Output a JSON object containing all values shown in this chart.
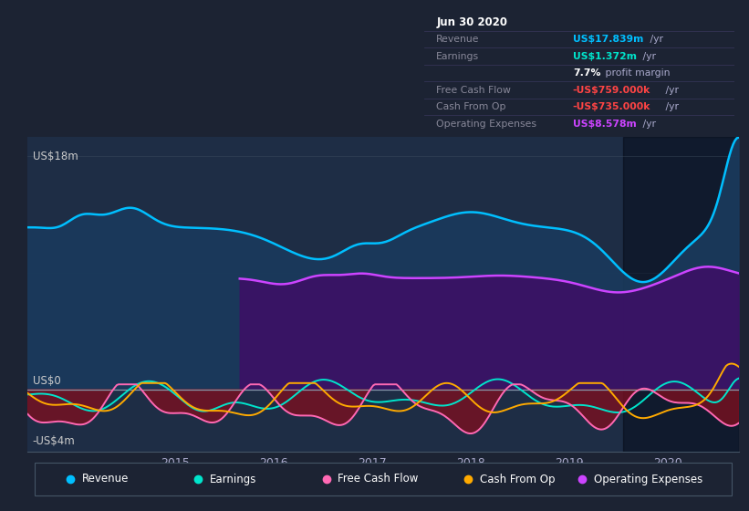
{
  "bg_color": "#1c2333",
  "plot_bg": "#1e2d45",
  "revenue_color": "#00bfff",
  "revenue_fill": "#1a3a5c",
  "earnings_color": "#00e5cc",
  "fcf_color": "#ff69b4",
  "fcf_fill": "#7a1020",
  "cashop_color": "#ffaa00",
  "opex_color": "#cc44ff",
  "opex_fill": "#3a1265",
  "dark_region_start": 2019.55,
  "opex_start": 2015.65,
  "xlim": [
    2013.5,
    2020.72
  ],
  "ylim": [
    -4.8,
    19.5
  ],
  "xtick_values": [
    2015,
    2016,
    2017,
    2018,
    2019,
    2020
  ],
  "xtick_labels": [
    "2015",
    "2016",
    "2017",
    "2018",
    "2019",
    "2020"
  ],
  "label_18": "US$18m",
  "label_0": "US$0",
  "label_m4": "-US$4m",
  "infobox_bg": "#080c14",
  "infobox_border": "#333355",
  "legend_items": [
    {
      "label": "Revenue",
      "color": "#00bfff"
    },
    {
      "label": "Earnings",
      "color": "#00e5cc"
    },
    {
      "label": "Free Cash Flow",
      "color": "#ff69b4"
    },
    {
      "label": "Cash From Op",
      "color": "#ffaa00"
    },
    {
      "label": "Operating Expenses",
      "color": "#cc44ff"
    }
  ],
  "info_rows": [
    {
      "label": "Jun 30 2020",
      "value": "",
      "suffix": "",
      "lc": "#ffffff",
      "vc": "#ffffff",
      "bold_label": true,
      "bold_value": false
    },
    {
      "label": "Revenue",
      "value": "US$17.839m",
      "suffix": " /yr",
      "lc": "#888899",
      "vc": "#00bfff",
      "bold_label": false,
      "bold_value": true
    },
    {
      "label": "Earnings",
      "value": "US$1.372m",
      "suffix": " /yr",
      "lc": "#888899",
      "vc": "#00e5cc",
      "bold_label": false,
      "bold_value": true
    },
    {
      "label": "",
      "value": "7.7%",
      "suffix": " profit margin",
      "lc": "#888899",
      "vc": "#ffffff",
      "bold_label": false,
      "bold_value": true
    },
    {
      "label": "Free Cash Flow",
      "value": "-US$759.000k",
      "suffix": " /yr",
      "lc": "#888899",
      "vc": "#ff4444",
      "bold_label": false,
      "bold_value": true
    },
    {
      "label": "Cash From Op",
      "value": "-US$735.000k",
      "suffix": " /yr",
      "lc": "#888899",
      "vc": "#ff4444",
      "bold_label": false,
      "bold_value": true
    },
    {
      "label": "Operating Expenses",
      "value": "US$8.578m",
      "suffix": " /yr",
      "lc": "#888899",
      "vc": "#cc44ff",
      "bold_label": false,
      "bold_value": true
    }
  ]
}
